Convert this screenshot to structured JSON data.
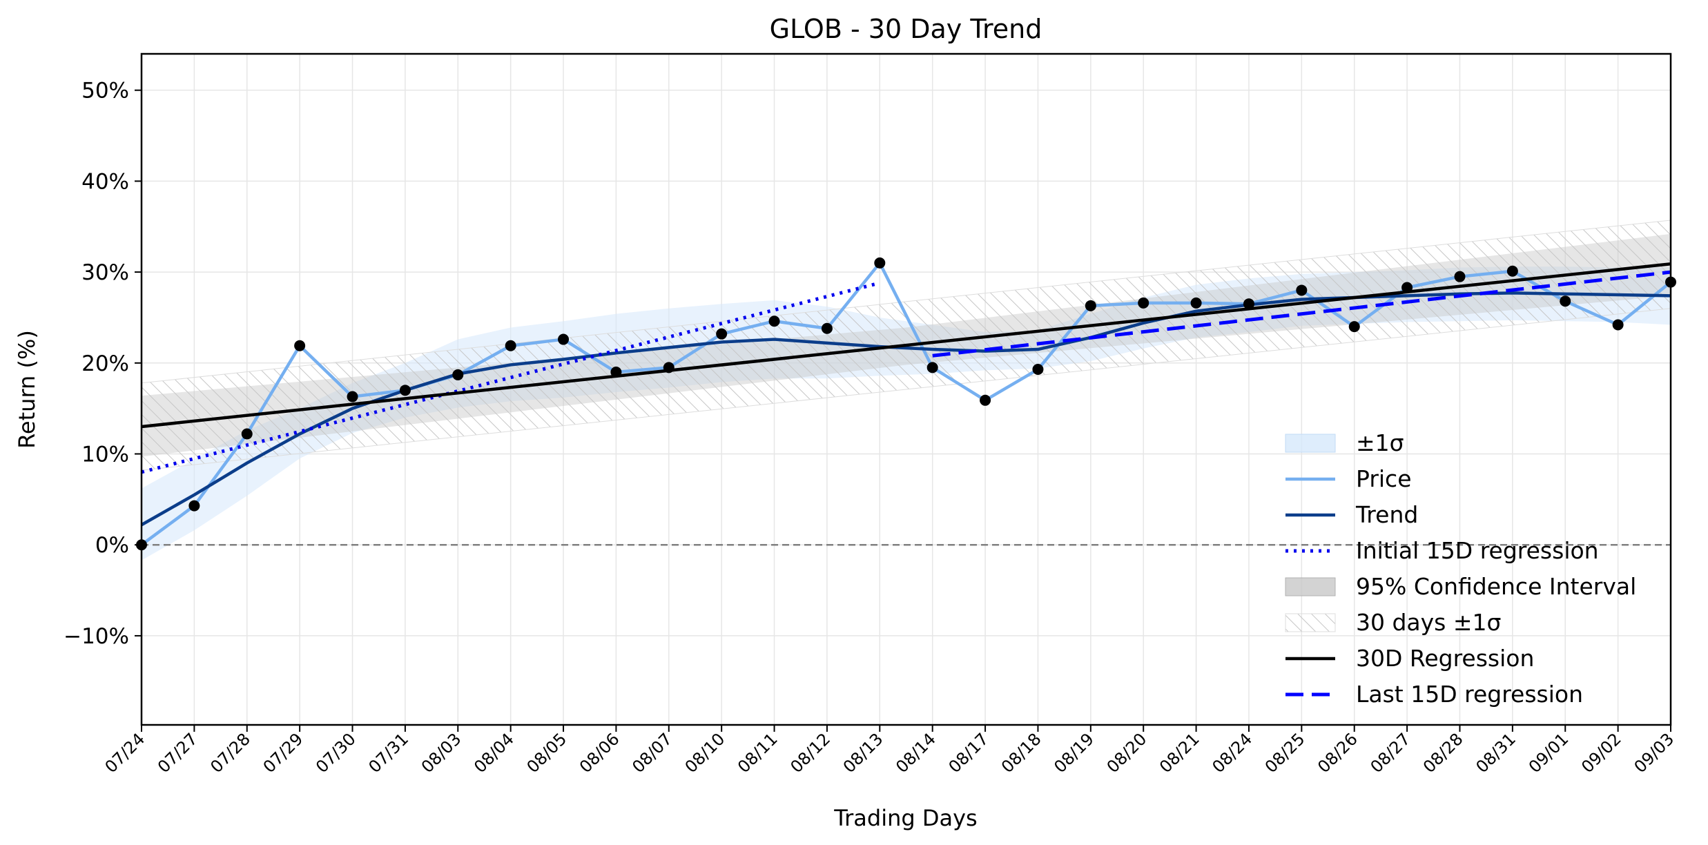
{
  "chart_data": {
    "type": "line",
    "title": "GLOB - 30 Day Trend",
    "xlabel": "Trading Days",
    "ylabel": "Return (%)",
    "ylim": [
      -19.8,
      54.0
    ],
    "yticks": [
      -10,
      0,
      10,
      20,
      30,
      40,
      50
    ],
    "ytick_labels": [
      "−10%",
      "0%",
      "10%",
      "20%",
      "30%",
      "40%",
      "50%"
    ],
    "grid": true,
    "zero_line": 0,
    "legend_position": "lower-right",
    "categories": [
      "07/24",
      "07/27",
      "07/28",
      "07/29",
      "07/30",
      "07/31",
      "08/03",
      "08/04",
      "08/05",
      "08/06",
      "08/07",
      "08/10",
      "08/11",
      "08/12",
      "08/13",
      "08/14",
      "08/17",
      "08/18",
      "08/19",
      "08/20",
      "08/21",
      "08/24",
      "08/25",
      "08/26",
      "08/27",
      "08/28",
      "08/31",
      "09/01",
      "09/02",
      "09/03"
    ],
    "series": [
      {
        "name": "Price",
        "kind": "line",
        "color": "#75aff0",
        "values": [
          0.0,
          4.3,
          12.2,
          21.9,
          16.3,
          17.0,
          18.7,
          21.9,
          22.6,
          19.0,
          19.5,
          23.2,
          24.6,
          23.8,
          31.0,
          19.5,
          15.9,
          19.3,
          26.3,
          26.6,
          26.6,
          26.5,
          28.0,
          24.0,
          28.3,
          29.5,
          30.1,
          26.8,
          24.2,
          28.9
        ]
      },
      {
        "name": "Trend",
        "kind": "line",
        "color": "#0b3d8a",
        "values": [
          2.2,
          5.5,
          9.0,
          12.2,
          15.0,
          17.0,
          18.8,
          19.8,
          20.4,
          21.1,
          21.7,
          22.3,
          22.6,
          22.2,
          21.8,
          21.5,
          21.3,
          21.5,
          22.8,
          24.4,
          25.7,
          26.4,
          27.0,
          27.2,
          27.4,
          27.6,
          27.7,
          27.6,
          27.5,
          27.4
        ]
      },
      {
        "name": "Initial 15D regression",
        "kind": "dotted",
        "color": "#0000ee",
        "x": [
          0,
          14
        ],
        "values": [
          8.0,
          28.8
        ]
      },
      {
        "name": "30D Regression",
        "kind": "line",
        "color": "#000000",
        "x": [
          0,
          29
        ],
        "values": [
          13.0,
          30.9
        ]
      },
      {
        "name": "Last 15D regression",
        "kind": "dashed",
        "color": "#0000ff",
        "x": [
          15,
          29
        ],
        "values": [
          20.8,
          30.0
        ]
      }
    ],
    "bands": [
      {
        "name": "±1σ",
        "color": "#d6e8fb",
        "lower": [
          -1.7,
          1.6,
          5.4,
          9.5,
          12.3,
          14.0,
          15.1,
          15.8,
          16.2,
          16.8,
          17.3,
          17.9,
          18.3,
          18.3,
          18.6,
          18.8,
          19.2,
          19.4,
          20.2,
          21.6,
          22.8,
          23.4,
          24.1,
          24.3,
          24.5,
          24.6,
          24.7,
          24.6,
          24.5,
          24.2
        ],
        "upper": [
          6.2,
          9.4,
          12.6,
          15.0,
          17.8,
          20.0,
          22.6,
          23.9,
          24.6,
          25.4,
          26.0,
          26.5,
          26.9,
          26.2,
          25.0,
          24.2,
          23.4,
          23.6,
          25.4,
          27.2,
          28.6,
          29.3,
          29.8,
          30.0,
          30.2,
          30.5,
          30.6,
          30.6,
          30.5,
          30.5
        ]
      },
      {
        "name": "95% Confidence Interval",
        "color": "#c8c8c8",
        "x": [
          0,
          14.5,
          29
        ],
        "lower": [
          9.7,
          19.8,
          27.4
        ],
        "upper": [
          16.4,
          23.9,
          34.2
        ]
      },
      {
        "name": "30 days ±1σ",
        "color": "#bbbbbb",
        "hatch": true,
        "x": [
          0,
          29
        ],
        "lower": [
          8.2,
          26.0
        ],
        "upper": [
          17.8,
          35.7
        ]
      }
    ],
    "markers": {
      "series": "Price",
      "color": "#000000"
    },
    "legend": [
      {
        "label": "±1σ",
        "kind": "band",
        "color": "#d6e8fb"
      },
      {
        "label": "Price",
        "kind": "line",
        "color": "#75aff0"
      },
      {
        "label": "Trend",
        "kind": "line",
        "color": "#0b3d8a"
      },
      {
        "label": "Initial 15D regression",
        "kind": "dotted",
        "color": "#0000ee"
      },
      {
        "label": "95% Confidence Interval",
        "kind": "band",
        "color": "#c8c8c8"
      },
      {
        "label": "30 days ±1σ",
        "kind": "hatch",
        "color": "#bbbbbb"
      },
      {
        "label": "30D Regression",
        "kind": "line",
        "color": "#000000"
      },
      {
        "label": "Last 15D regression",
        "kind": "dashed",
        "color": "#0000ff"
      }
    ]
  }
}
